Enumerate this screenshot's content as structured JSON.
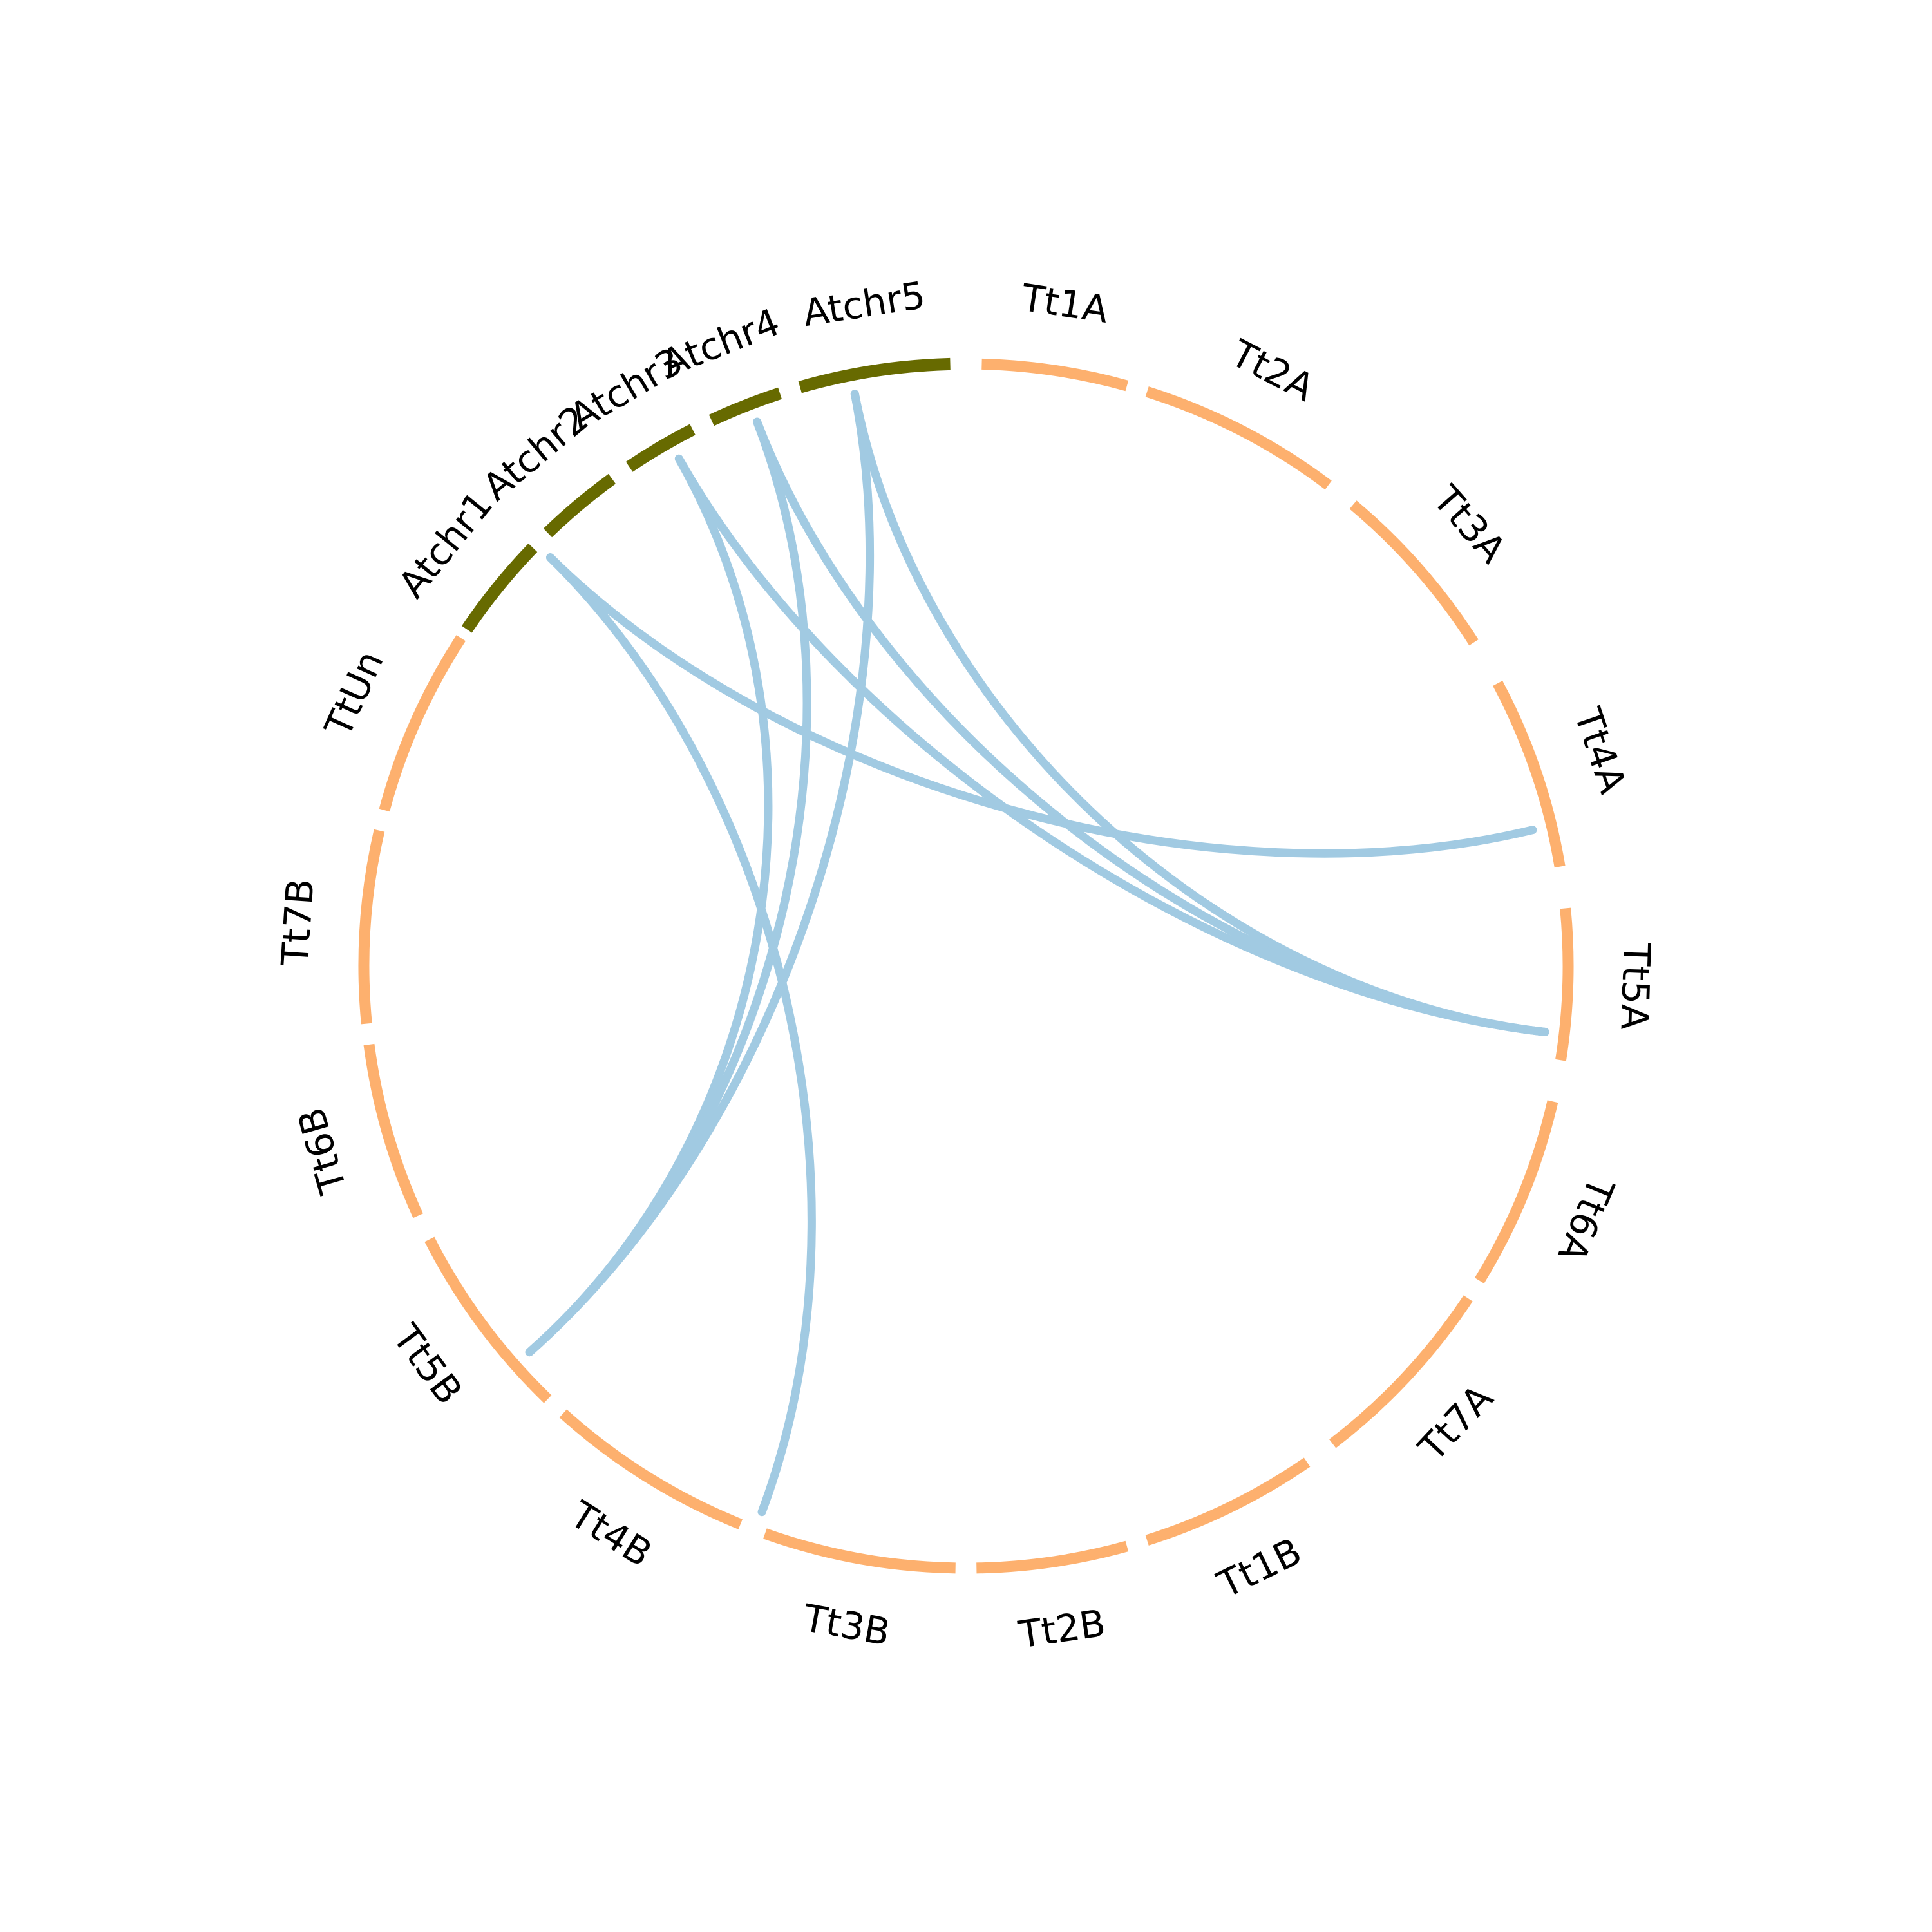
{
  "diagram": {
    "type": "circos",
    "colors": {
      "group_Tt": "#fdb06e",
      "group_At": "#676a00",
      "link": "#a1cae2",
      "label": "#000000"
    },
    "segments": [
      {
        "id": "Tt1A",
        "label": "Tt1A",
        "group": "Tt"
      },
      {
        "id": "Tt2A",
        "label": "Tt2A",
        "group": "Tt"
      },
      {
        "id": "Tt3A",
        "label": "Tt3A",
        "group": "Tt"
      },
      {
        "id": "Tt4A",
        "label": "Tt4A",
        "group": "Tt"
      },
      {
        "id": "Tt5A",
        "label": "Tt5A",
        "group": "Tt"
      },
      {
        "id": "Tt6A",
        "label": "Tt6A",
        "group": "Tt"
      },
      {
        "id": "Tt7A",
        "label": "Tt7A",
        "group": "Tt"
      },
      {
        "id": "Tt1B",
        "label": "Tt1B",
        "group": "Tt"
      },
      {
        "id": "Tt2B",
        "label": "Tt2B",
        "group": "Tt"
      },
      {
        "id": "Tt3B",
        "label": "Tt3B",
        "group": "Tt"
      },
      {
        "id": "Tt4B",
        "label": "Tt4B",
        "group": "Tt"
      },
      {
        "id": "Tt5B",
        "label": "Tt5B",
        "group": "Tt"
      },
      {
        "id": "Tt6B",
        "label": "Tt6B",
        "group": "Tt"
      },
      {
        "id": "Tt7B",
        "label": "Tt7B",
        "group": "Tt"
      },
      {
        "id": "TtUn",
        "label": "TtUn",
        "group": "Tt"
      },
      {
        "id": "Atchr1",
        "label": "Atchr1",
        "group": "At"
      },
      {
        "id": "Atchr2",
        "label": "Atchr2",
        "group": "At"
      },
      {
        "id": "Atchr3",
        "label": "Atchr3",
        "group": "At"
      },
      {
        "id": "Atchr4",
        "label": "Atchr4",
        "group": "At"
      },
      {
        "id": "Atchr5",
        "label": "Atchr5",
        "group": "At"
      }
    ],
    "links": [
      {
        "from": "Atchr1",
        "to": "Tt4A"
      },
      {
        "from": "Atchr1",
        "to": "Tt4B"
      },
      {
        "from": "Atchr3",
        "to": "Tt5A"
      },
      {
        "from": "Atchr3",
        "to": "Tt5B"
      },
      {
        "from": "Atchr4",
        "to": "Tt5A"
      },
      {
        "from": "Atchr4",
        "to": "Tt5B"
      },
      {
        "from": "Atchr5",
        "to": "Tt5A"
      },
      {
        "from": "Atchr5",
        "to": "Tt5B"
      }
    ]
  }
}
